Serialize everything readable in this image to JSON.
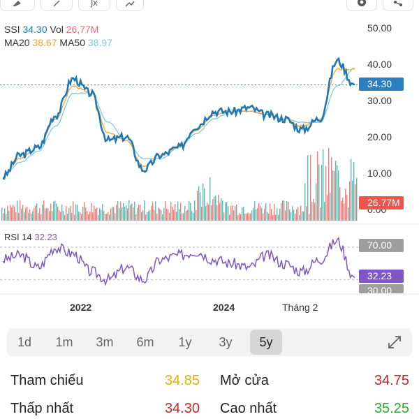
{
  "legend": {
    "symbol": "SSI",
    "price": "34.30",
    "vol_label": "Vol",
    "vol": "26,77M",
    "ma20_label": "MA20",
    "ma20": "38.67",
    "ma50_label": "MA50",
    "ma50": "38.97"
  },
  "rsi": {
    "label": "RSI 14",
    "value": "32.23"
  },
  "price_axis": [
    "50.00",
    "40.00",
    "30.00",
    "20.00",
    "10.00",
    "0.00"
  ],
  "tags": {
    "price": "34.30",
    "volume": "26.77M",
    "rsi_70": "70.00",
    "rsi_value": "32.23",
    "rsi_30": "30.00"
  },
  "x_axis": [
    "2022",
    "2024",
    "Tháng 2"
  ],
  "colors": {
    "price_line": "#1f77b4",
    "ma20": "#f2a531",
    "ma50": "#7cc8e8",
    "vol_up": "#26a69a",
    "vol_down": "#ef5350",
    "rsi": "#7e57c2",
    "price_tag": "#2a7fc0",
    "volume_tag": "#ef5350",
    "rsi_tag": "#7e57c2",
    "level_tag": "#9e9e9e"
  },
  "chart_data": {
    "type": "line",
    "x": [
      "2020-12",
      "2021-03",
      "2021-06",
      "2021-09",
      "2021-11",
      "2022-03",
      "2022-06",
      "2022-09",
      "2022-11",
      "2023-02",
      "2023-05",
      "2023-08",
      "2023-10",
      "2023-12",
      "2024-02",
      "2024-05",
      "2024-08",
      "2024-11",
      "2025-01",
      "2025-03",
      "2025-05"
    ],
    "series": [
      {
        "name": "SSI",
        "values": [
          9,
          15,
          17,
          26,
          36,
          32,
          19,
          20,
          11,
          15,
          17,
          23,
          27,
          27,
          28,
          26,
          25,
          22,
          25,
          41,
          34.3
        ]
      },
      {
        "name": "MA20",
        "values": [
          9,
          14,
          17,
          25,
          34,
          32,
          21,
          19,
          12,
          15,
          17,
          22,
          26,
          27,
          27,
          26,
          25,
          23,
          25,
          38.67,
          38.67
        ]
      },
      {
        "name": "MA50",
        "values": [
          9,
          13,
          16,
          23,
          32,
          32,
          24,
          19,
          14,
          14,
          17,
          21,
          25,
          27,
          27,
          26,
          25,
          24,
          24,
          34,
          38.97
        ]
      }
    ],
    "rsi": [
      55,
      60,
      45,
      70,
      62,
      40,
      30,
      45,
      30,
      55,
      60,
      65,
      55,
      50,
      45,
      60,
      50,
      40,
      55,
      78,
      32.23
    ],
    "ylim": [
      0,
      50
    ],
    "rsi_levels": [
      70,
      30
    ]
  },
  "periods": [
    "1d",
    "1m",
    "3m",
    "6m",
    "1y",
    "3y",
    "5y"
  ],
  "active_period": "5y",
  "stats": {
    "ref_label": "Tham chiếu",
    "ref_value": "34.85",
    "open_label": "Mở cửa",
    "open_value": "34.75",
    "low_label": "Thấp nhất",
    "low_value": "34.30",
    "high_label": "Cao nhất",
    "high_value": "35.25",
    "ref_color": "#e2b100",
    "open_color": "#c62828",
    "low_color": "#c62828",
    "high_color": "#2eab2e"
  }
}
